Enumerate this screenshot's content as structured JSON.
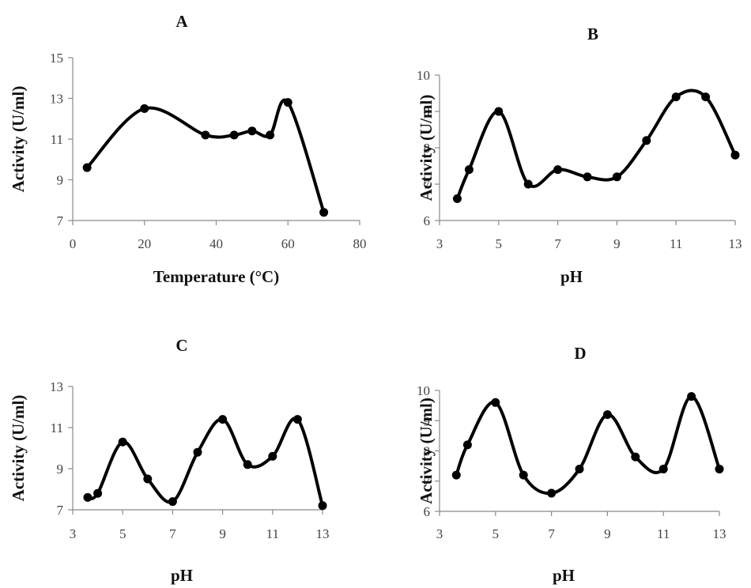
{
  "chart_data": [
    {
      "type": "line",
      "title": "A",
      "xlabel": "Temperature (°C)",
      "ylabel": "Activity (U/ml)",
      "xlim": [
        0,
        80
      ],
      "ylim": [
        7,
        15
      ],
      "xticks": [
        0,
        20,
        40,
        60,
        80
      ],
      "yticks": [
        7,
        9,
        11,
        13,
        15
      ],
      "x": [
        4,
        20,
        37,
        45,
        50,
        55,
        60,
        70
      ],
      "y": [
        9.6,
        12.5,
        11.2,
        11.2,
        11.4,
        11.2,
        12.8,
        7.4
      ],
      "grid": false
    },
    {
      "type": "line",
      "title": "B",
      "xlabel": "pH",
      "ylabel": "Activity (U/ml)",
      "xlim": [
        3,
        13
      ],
      "ylim": [
        6,
        10
      ],
      "xticks": [
        3,
        5,
        7,
        9,
        11,
        13
      ],
      "yticks": [
        6,
        7,
        8,
        9,
        10
      ],
      "x": [
        3.6,
        4,
        5,
        6,
        7,
        8,
        9,
        10,
        11,
        12,
        13
      ],
      "y": [
        6.6,
        7.4,
        9.0,
        7.0,
        7.4,
        7.2,
        7.2,
        8.2,
        9.4,
        9.4,
        7.8
      ],
      "grid": false
    },
    {
      "type": "line",
      "title": "C",
      "xlabel": "pH",
      "ylabel": "Activity (U/ml)",
      "xlim": [
        3,
        13
      ],
      "ylim": [
        7,
        13
      ],
      "xticks": [
        3,
        5,
        7,
        9,
        11,
        13
      ],
      "yticks": [
        7,
        9,
        11,
        13
      ],
      "x": [
        3.6,
        4,
        5,
        6,
        7,
        8,
        9,
        10,
        11,
        12,
        13
      ],
      "y": [
        7.6,
        7.8,
        10.3,
        8.5,
        7.4,
        9.8,
        11.4,
        9.2,
        9.6,
        11.4,
        7.2
      ],
      "grid": false
    },
    {
      "type": "line",
      "title": "D",
      "xlabel": "pH",
      "ylabel": "Activity (U/ml)",
      "xlim": [
        3,
        13
      ],
      "ylim": [
        6,
        10
      ],
      "xticks": [
        3,
        5,
        7,
        9,
        11,
        13
      ],
      "yticks": [
        6,
        7,
        8,
        9,
        10
      ],
      "x": [
        3.6,
        4,
        5,
        6,
        7,
        8,
        9,
        10,
        11,
        12,
        13
      ],
      "y": [
        7.2,
        8.2,
        9.6,
        7.2,
        6.6,
        7.4,
        9.2,
        7.8,
        7.4,
        9.8,
        7.4
      ],
      "grid": false
    }
  ]
}
